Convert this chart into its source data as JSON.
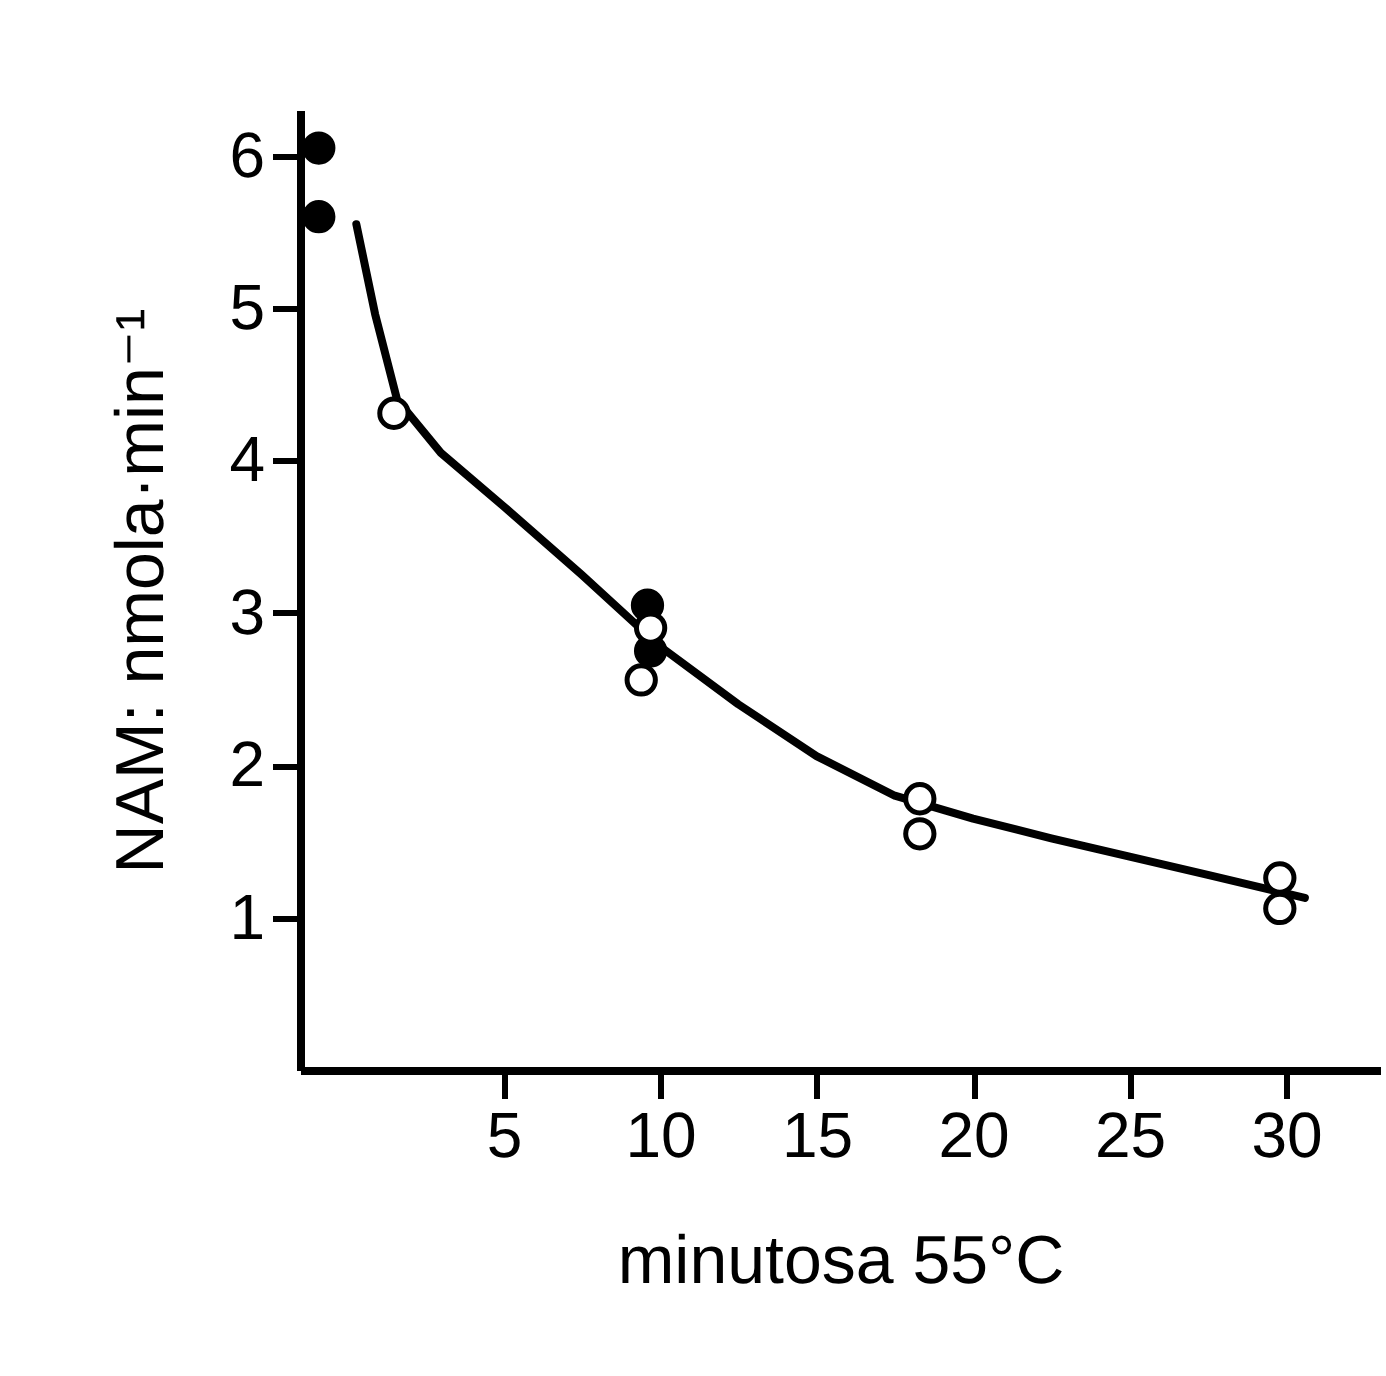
{
  "chart_data": {
    "type": "scatter",
    "xlabel": "minutosa 55°C",
    "ylabel": "NAM: nmola·min⁻¹",
    "xlim": [
      -1.5,
      33
    ],
    "ylim": [
      0,
      6.3
    ],
    "xticks": [
      5,
      10,
      15,
      20,
      25,
      30
    ],
    "yticks": [
      1,
      2,
      3,
      4,
      5,
      6
    ],
    "grid": false,
    "marker": "circle",
    "series": [
      {
        "color": "#000000",
        "x": [
          -0.9,
          -0.9,
          9.6,
          9.7
        ],
        "values": [
          6.05,
          5.6,
          3.05,
          2.75
        ]
      },
      {
        "color": "#ffffff",
        "x": [
          1.5,
          9.7,
          9.4,
          18.3,
          18.3,
          29.8,
          29.8
        ],
        "values": [
          4.31,
          2.9,
          2.56,
          1.78,
          1.55,
          1.26,
          1.06
        ]
      },
      {
        "type": "line",
        "color": "#000000",
        "line_style": "solid",
        "marker": "none",
        "x": [
          0.3,
          0.9,
          1.6,
          3,
          5,
          7.5,
          10,
          12.5,
          15,
          17.5,
          20,
          22.5,
          25,
          27.5,
          30.6
        ],
        "values": [
          5.55,
          4.96,
          4.4,
          4.05,
          3.7,
          3.25,
          2.78,
          2.4,
          2.06,
          1.8,
          1.65,
          1.52,
          1.4,
          1.28,
          1.13
        ]
      }
    ]
  }
}
